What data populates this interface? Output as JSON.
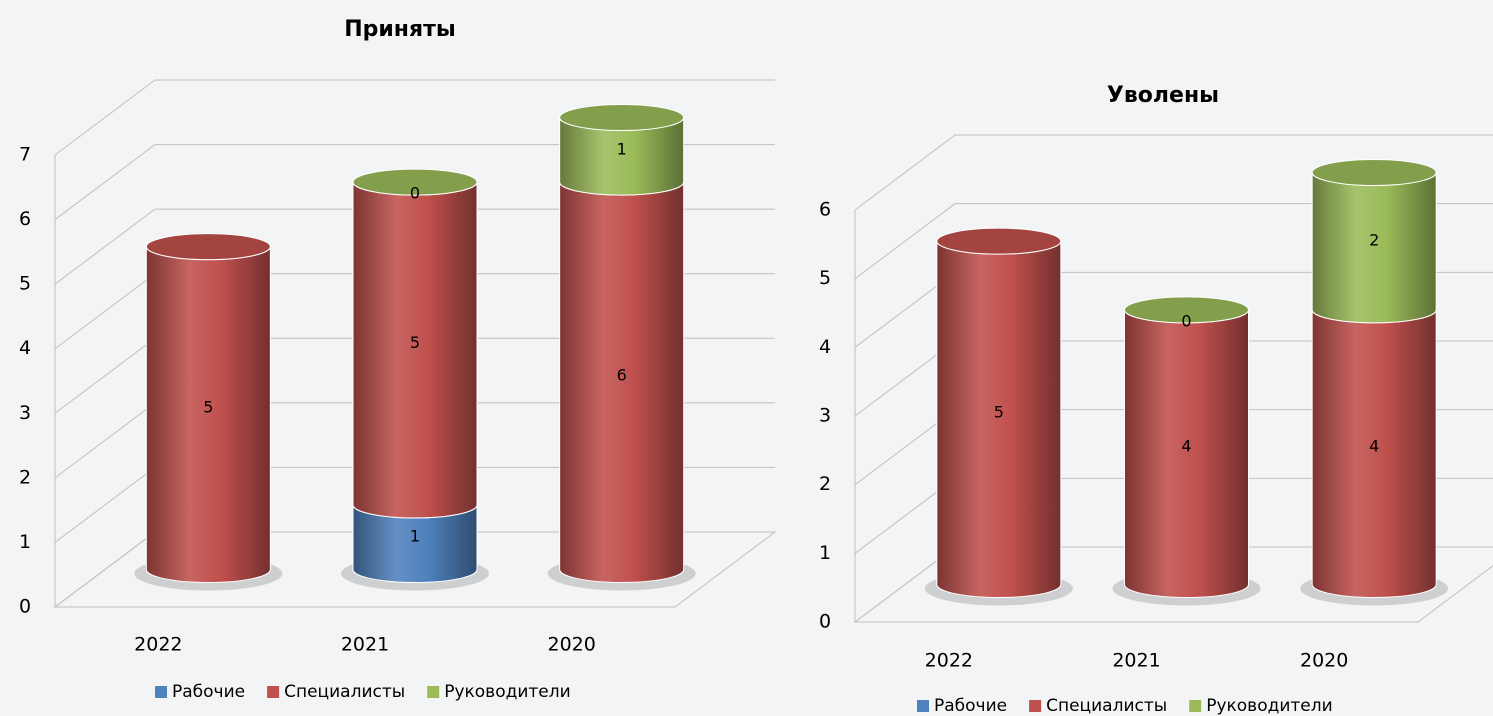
{
  "chart_data": [
    {
      "type": "bar",
      "stacked": true,
      "three_d": true,
      "title": "Приняты",
      "categories": [
        "2022",
        "2021",
        "2020"
      ],
      "series": [
        {
          "name": "Рабочие",
          "color": "#4f81bd",
          "values": [
            null,
            1,
            null
          ]
        },
        {
          "name": "Специалисты",
          "color": "#c0504d",
          "values": [
            5,
            5,
            6
          ]
        },
        {
          "name": "Руководители",
          "color": "#9bbb59",
          "values": [
            null,
            0,
            1
          ]
        }
      ],
      "ylim": [
        0,
        7
      ],
      "yticks": [
        0,
        1,
        2,
        3,
        4,
        5,
        6,
        7
      ],
      "grid": true,
      "legend": "bottom"
    },
    {
      "type": "bar",
      "stacked": true,
      "three_d": true,
      "title": "Уволены",
      "categories": [
        "2022",
        "2021",
        "2020"
      ],
      "series": [
        {
          "name": "Рабочие",
          "color": "#4f81bd",
          "values": [
            null,
            null,
            null
          ]
        },
        {
          "name": "Специалисты",
          "color": "#c0504d",
          "values": [
            5,
            4,
            4
          ]
        },
        {
          "name": "Руководители",
          "color": "#9bbb59",
          "values": [
            null,
            0,
            2
          ]
        }
      ],
      "ylim": [
        0,
        6
      ],
      "yticks": [
        0,
        1,
        2,
        3,
        4,
        5,
        6
      ],
      "grid": true,
      "legend": "bottom"
    }
  ]
}
